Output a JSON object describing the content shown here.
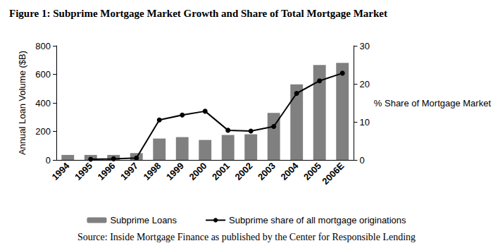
{
  "chart_data": {
    "type": "bar",
    "title": "Figure 1: Subprime Mortgage Market Growth and Share of Total Mortgage Market",
    "source": "Source: Inside Mortgage Finance as published by the Center for Responsible Lending",
    "y_label": "Annual Loan Volume ($B)",
    "y2_label": "% Share of Mortgage Market",
    "categories": [
      "1994",
      "1995",
      "1996",
      "1997",
      "1998",
      "1999",
      "2000",
      "2001",
      "2002",
      "2003",
      "2004",
      "2005",
      "2006E"
    ],
    "series": [
      {
        "name": "Subprime Loans",
        "type": "bar",
        "color": "#808080",
        "values": [
          35,
          35,
          35,
          48,
          150,
          160,
          140,
          175,
          180,
          330,
          530,
          665,
          680
        ]
      },
      {
        "name": "Subprime share of all mortgage originations",
        "type": "line",
        "axis": "y2",
        "color": "#000000",
        "marker": "circle",
        "values": [
          null,
          0.2,
          0.3,
          0.5,
          10.5,
          11.8,
          12.8,
          7.8,
          7.6,
          8.8,
          17.5,
          20.8,
          22.8
        ]
      }
    ],
    "ylim": [
      0,
      800
    ],
    "yticks": [
      0,
      200,
      400,
      600,
      800
    ],
    "y2lim": [
      0,
      30
    ],
    "y2ticks": [
      0,
      10,
      20,
      30
    ],
    "grid": false,
    "legend": "bottom"
  }
}
